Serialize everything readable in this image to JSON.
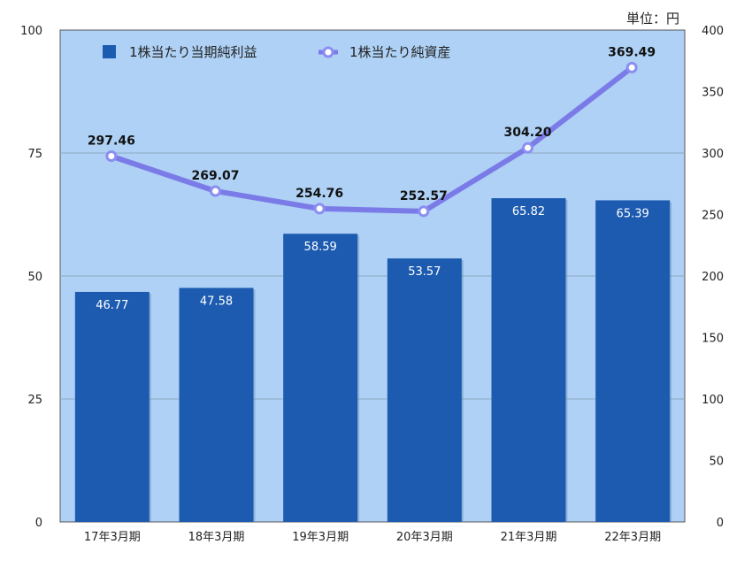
{
  "chart_data": {
    "type": "bar",
    "unit_label": "単位：円",
    "categories": [
      "17年3月期",
      "18年3月期",
      "19年3月期",
      "20年3月期",
      "21年3月期",
      "22年3月期"
    ],
    "series": [
      {
        "name": "1株当たり当期純利益",
        "kind": "bar",
        "axis": "left",
        "values": [
          46.77,
          47.58,
          58.59,
          53.57,
          65.82,
          65.39
        ],
        "labels": [
          "46.77",
          "47.58",
          "58.59",
          "53.57",
          "65.82",
          "65.39"
        ],
        "color": "#1d5bb0"
      },
      {
        "name": "1株当たり純資産",
        "kind": "line",
        "axis": "right",
        "values": [
          297.46,
          269.07,
          254.76,
          252.57,
          304.2,
          369.49
        ],
        "labels": [
          "297.46",
          "269.07",
          "254.76",
          "252.57",
          "304.20",
          "369.49"
        ],
        "color": "#7b7be8"
      }
    ],
    "y_left": {
      "min": 0,
      "max": 100,
      "ticks": [
        "0",
        "25",
        "50",
        "75",
        "100"
      ]
    },
    "y_right": {
      "min": 0,
      "max": 400,
      "ticks": [
        "0",
        "50",
        "100",
        "150",
        "200",
        "250",
        "300",
        "350",
        "400"
      ]
    },
    "grid": true,
    "legend_position": "top-left",
    "plot_background": "#aed1f5"
  }
}
